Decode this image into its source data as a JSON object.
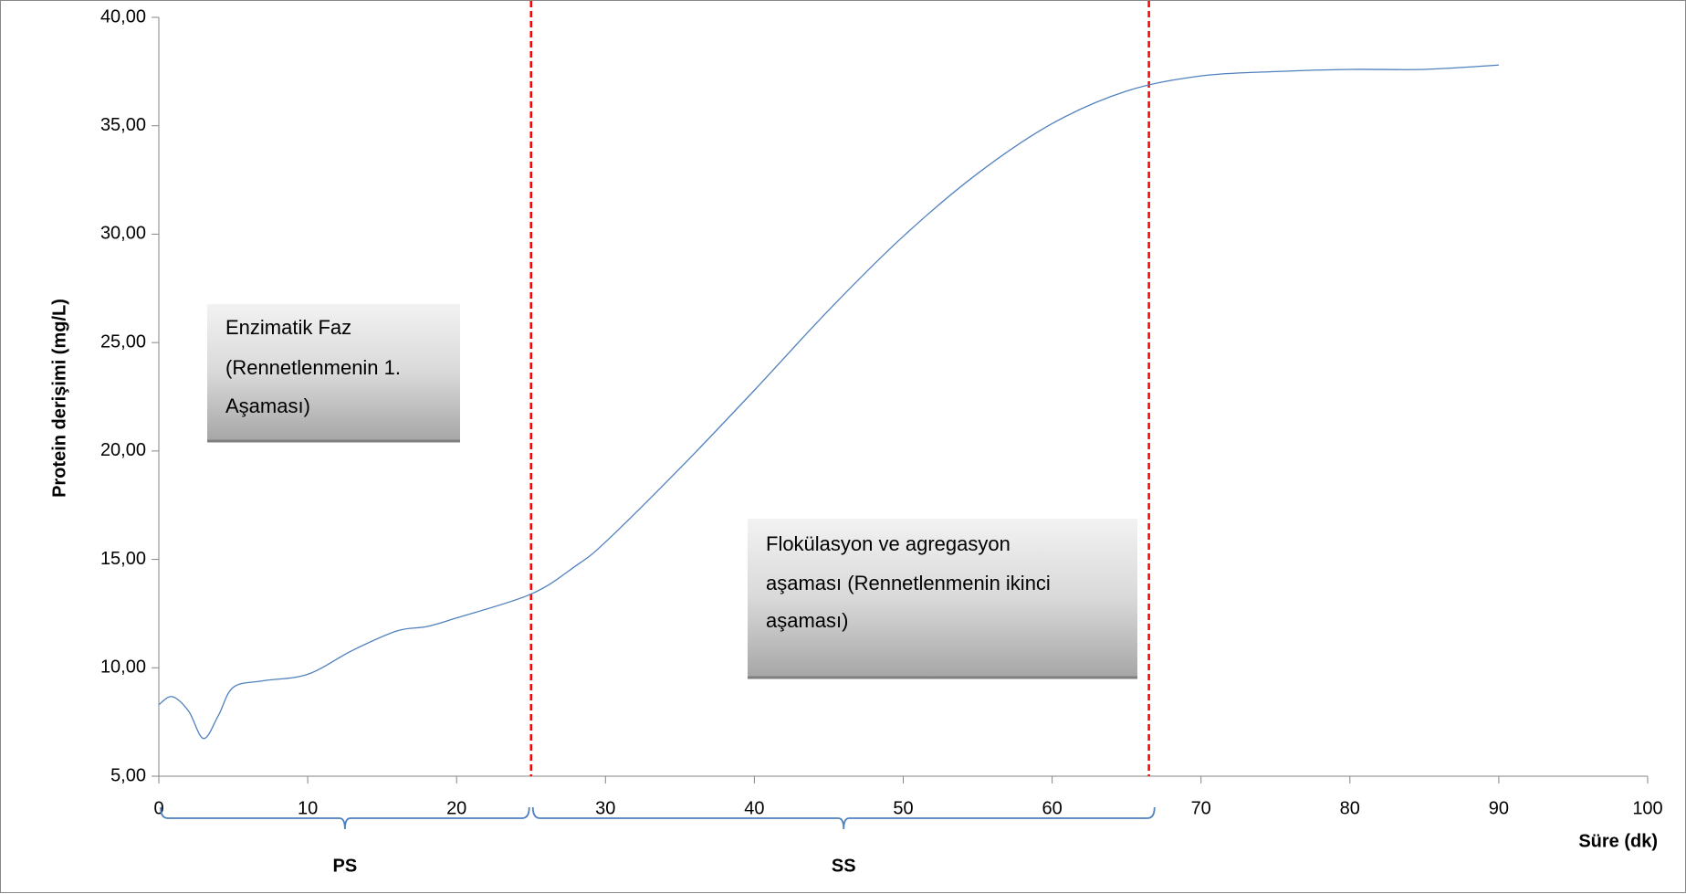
{
  "chart_data": {
    "type": "line",
    "y_label": "Protein derişimi (mg/L)",
    "x_label": "Süre (dk)",
    "x": [
      0,
      0.9,
      2,
      3,
      4,
      5,
      7,
      10,
      13,
      16,
      18,
      20,
      25,
      28,
      30,
      35,
      40,
      45,
      50,
      55,
      60,
      65,
      70,
      75,
      80,
      85,
      90
    ],
    "series": [
      {
        "color": "#4f81bd",
        "values": [
          8.3,
          8.67,
          8.0,
          6.74,
          7.8,
          9.1,
          9.4,
          9.7,
          10.8,
          11.7,
          11.9,
          12.3,
          13.4,
          14.7,
          15.8,
          19.2,
          22.8,
          26.5,
          29.9,
          32.8,
          35.1,
          36.6,
          37.3,
          37.5,
          37.6,
          37.6,
          37.8
        ]
      }
    ],
    "xlim": [
      0,
      100
    ],
    "xticks": [
      0,
      10,
      20,
      30,
      40,
      50,
      60,
      70,
      80,
      90,
      100
    ],
    "ylim": [
      5,
      40
    ],
    "yticks": [
      {
        "value": 5,
        "label": "5,00"
      },
      {
        "value": 10,
        "label": "10,00"
      },
      {
        "value": 15,
        "label": "15,00"
      },
      {
        "value": 20,
        "label": "20,00"
      },
      {
        "value": 25,
        "label": "25,00"
      },
      {
        "value": 30,
        "label": "30,00"
      },
      {
        "value": 35,
        "label": "35,00"
      },
      {
        "value": 40,
        "label": "40,00"
      }
    ],
    "vlines": [
      {
        "x": 25,
        "color": "#ff0000"
      },
      {
        "x": 66.5,
        "color": "#ff0000"
      }
    ],
    "phases": [
      {
        "label": "PS",
        "start": 0,
        "end": 25
      },
      {
        "label": "SS",
        "start": 25,
        "end": 67
      }
    ],
    "annotations": [
      {
        "lines": [
          "Enzimatik Faz",
          "(Rennetlenmenin 1.",
          "Aşaması)"
        ]
      },
      {
        "lines": [
          "Flokülasyon ve agregasyon",
          "aşaması (Rennetlenmenin ikinci",
          "aşaması)"
        ]
      }
    ]
  }
}
